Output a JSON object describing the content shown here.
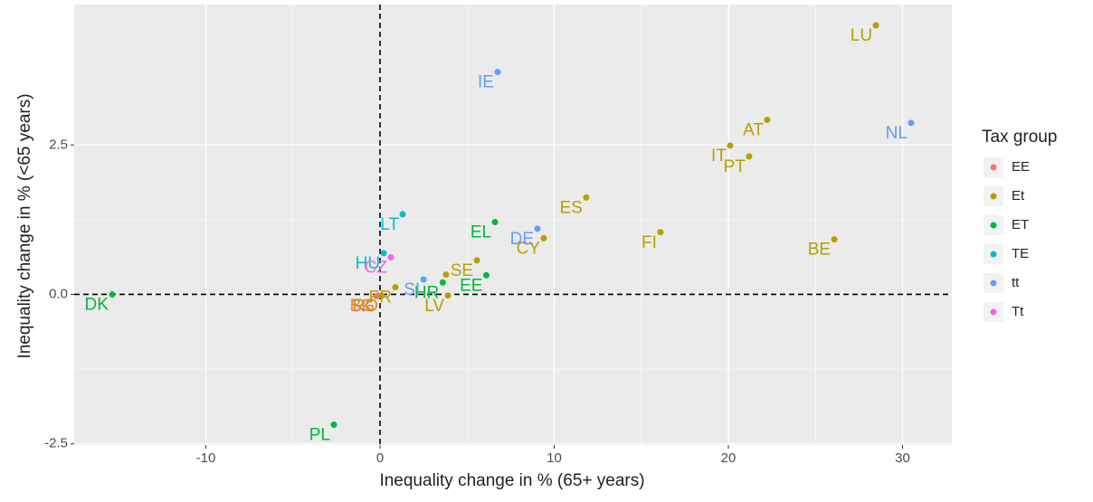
{
  "chart_data": {
    "type": "scatter",
    "xlabel": "Inequality change in % (65+ years)",
    "ylabel": "Inequality change in % (<65 years)",
    "xlim": [
      -17.56,
      32.83
    ],
    "ylim": [
      -2.52,
      4.85
    ],
    "xticks": [
      -10,
      0,
      10,
      20,
      30
    ],
    "yticks": [
      -2.5,
      {
        "value": 0,
        "label": "0.0"
      },
      2.5
    ],
    "grid": true,
    "hline": 0,
    "vline": 0,
    "legend_title": "Tax group",
    "legend": "right",
    "series": [
      {
        "name": "EE",
        "color": "#F8766D",
        "x": [
          -0.2,
          -0.1
        ],
        "y": [
          -0.03,
          -0.02
        ],
        "labels": [
          "SK",
          "BG"
        ]
      },
      {
        "name": "Et",
        "color": "#B79F00",
        "x": [
          28.47,
          22.23,
          20.1,
          21.19,
          11.84,
          9.4,
          16.1,
          26.08,
          5.56,
          3.79,
          0.88,
          3.9,
          0.1
        ],
        "y": [
          4.5,
          2.92,
          2.49,
          2.31,
          1.62,
          0.94,
          1.04,
          0.92,
          0.57,
          0.33,
          0.12,
          -0.02,
          -0.02
        ],
        "labels": [
          "LU",
          "AT",
          "IT",
          "PT",
          "ES",
          "CY",
          "FI",
          "BE",
          "SE",
          null,
          "FR",
          "LV",
          "RO"
        ]
      },
      {
        "name": "ET",
        "color": "#00BA38",
        "x": [
          6.6,
          6.1,
          3.6,
          -15.38,
          -2.65
        ],
        "y": [
          1.21,
          0.32,
          0.2,
          0,
          -2.18
        ],
        "labels": [
          "EL",
          "EE",
          "HR",
          "DK",
          "PL"
        ]
      },
      {
        "name": "TE",
        "color": "#00BFC4",
        "x": [
          1.3,
          0.21
        ],
        "y": [
          1.34,
          0.69
        ],
        "labels": [
          "LT",
          "HU"
        ]
      },
      {
        "name": "tt",
        "color": "#619CFF",
        "x": [
          6.75,
          30.49,
          9.04,
          2.5
        ],
        "y": [
          3.72,
          2.87,
          1.1,
          0.25
        ],
        "labels": [
          "IE",
          "NL",
          "DE",
          "SI"
        ]
      },
      {
        "name": "Tt",
        "color": "#F564E3",
        "x": [
          0.62
        ],
        "y": [
          0.62
        ],
        "labels": [
          "CZ"
        ]
      }
    ]
  }
}
